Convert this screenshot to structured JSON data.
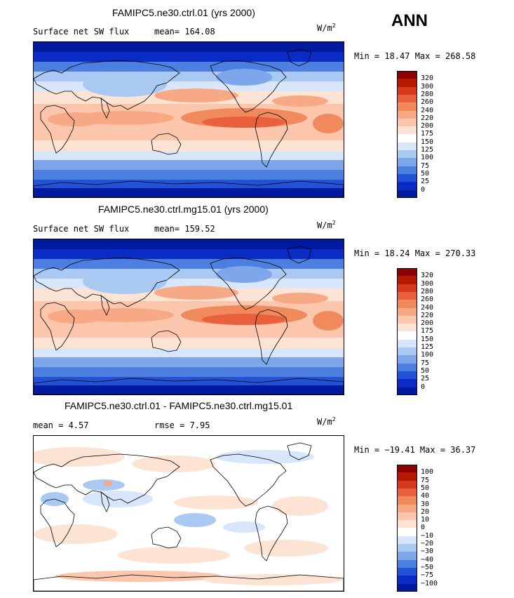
{
  "season": "ANN",
  "units_prefix": "W/m",
  "units_exp": "2",
  "panels": [
    {
      "title": "FAMIPC5.ne30.ctrl.01 (yrs 2000)",
      "left_label": "Surface net SW flux",
      "mid_label": "mean= 164.08",
      "minmax": "Min =  18.47 Max = 268.58",
      "kind": "field"
    },
    {
      "title": "FAMIPC5.ne30.ctrl.mg15.01 (yrs 2000)",
      "left_label": "Surface net SW flux",
      "mid_label": "mean= 159.52",
      "minmax": "Min =  18.24 Max = 270.33",
      "kind": "field"
    },
    {
      "title": "FAMIPC5.ne30.ctrl.01 - FAMIPC5.ne30.ctrl.mg15.01",
      "left_label": "mean =   4.57",
      "mid_label": "rmse =   7.95",
      "minmax": "Min = −19.41 Max =  36.37",
      "kind": "diff"
    }
  ],
  "colorbars": {
    "field": {
      "labels": [
        "320",
        "300",
        "280",
        "260",
        "240",
        "220",
        "200",
        "175",
        "150",
        "125",
        "100",
        "75",
        "50",
        "25",
        "0"
      ],
      "colors": [
        "#8b0000",
        "#b51a00",
        "#d43a1a",
        "#e8603c",
        "#f08a5d",
        "#f7a985",
        "#fbc6ab",
        "#fde3d3",
        "#ffffff",
        "#d7e6fb",
        "#a9c8f2",
        "#7ea6ea",
        "#4d7fe0",
        "#2352d6",
        "#0a2cc4",
        "#001aa0"
      ]
    },
    "diff": {
      "labels": [
        "100",
        "75",
        "50",
        "40",
        "30",
        "20",
        "10",
        "0",
        "−10",
        "−20",
        "−30",
        "−40",
        "−50",
        "−75",
        "−100"
      ],
      "colors": [
        "#8b0000",
        "#b51a00",
        "#d43a1a",
        "#e8603c",
        "#f08a5d",
        "#f7a985",
        "#fbc6ab",
        "#fde3d3",
        "#ffffff",
        "#d7e6fb",
        "#a9c8f2",
        "#7ea6ea",
        "#4d7fe0",
        "#2352d6",
        "#0a2cc4",
        "#001aa0"
      ]
    }
  },
  "chart_data": [
    {
      "type": "heatmap",
      "title": "FAMIPC5.ne30.ctrl.01 (yrs 2000)",
      "variable": "Surface net SW flux",
      "units": "W/m2",
      "mean": 164.08,
      "min": 18.47,
      "max": 268.58,
      "levels": [
        0,
        25,
        50,
        75,
        100,
        125,
        150,
        175,
        200,
        220,
        240,
        260,
        280,
        300,
        320
      ]
    },
    {
      "type": "heatmap",
      "title": "FAMIPC5.ne30.ctrl.mg15.01 (yrs 2000)",
      "variable": "Surface net SW flux",
      "units": "W/m2",
      "mean": 159.52,
      "min": 18.24,
      "max": 270.33,
      "levels": [
        0,
        25,
        50,
        75,
        100,
        125,
        150,
        175,
        200,
        220,
        240,
        260,
        280,
        300,
        320
      ]
    },
    {
      "type": "heatmap",
      "title": "FAMIPC5.ne30.ctrl.01 - FAMIPC5.ne30.ctrl.mg15.01",
      "units": "W/m2",
      "mean": 4.57,
      "rmse": 7.95,
      "min": -19.41,
      "max": 36.37,
      "levels": [
        -100,
        -75,
        -50,
        -40,
        -30,
        -20,
        -10,
        0,
        10,
        20,
        30,
        40,
        50,
        75,
        100
      ]
    }
  ]
}
